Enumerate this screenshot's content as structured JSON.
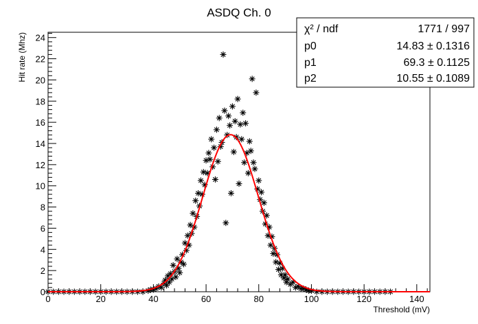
{
  "chart_data": {
    "type": "scatter",
    "title": "ASDQ Ch. 0",
    "xlabel": "Threshold (mV)",
    "ylabel": "Hit rate (Mhz)",
    "xlim": [
      0,
      145
    ],
    "ylim": [
      0,
      24.5
    ],
    "x_ticks": [
      0,
      20,
      40,
      60,
      80,
      100,
      120,
      140
    ],
    "y_ticks": [
      0,
      2,
      4,
      6,
      8,
      10,
      12,
      14,
      16,
      18,
      20,
      22,
      24
    ],
    "grid": false,
    "marker": "asterisk",
    "marker_color": "#000000",
    "fit_color": "#ff0000",
    "fit": {
      "function": "gaus",
      "p0": 14.83,
      "p1": 69.3,
      "p2": 10.55,
      "x_range": [
        0,
        145
      ]
    },
    "stats": {
      "rows": [
        {
          "label": "χ² / ndf",
          "value": "1771 / 997"
        },
        {
          "label": "p0",
          "value": "14.83 ± 0.1316"
        },
        {
          "label": "p1",
          "value": "69.3 ± 0.1125"
        },
        {
          "label": "p2",
          "value": "10.55 ± 0.1089"
        }
      ]
    },
    "series": [
      {
        "points": [
          [
            0,
            0
          ],
          [
            2,
            0
          ],
          [
            4,
            0
          ],
          [
            6,
            0
          ],
          [
            8,
            0
          ],
          [
            10,
            0
          ],
          [
            12,
            0
          ],
          [
            14,
            0
          ],
          [
            16,
            0
          ],
          [
            18,
            0
          ],
          [
            20,
            0
          ],
          [
            22,
            0
          ],
          [
            24,
            0
          ],
          [
            26,
            0
          ],
          [
            28,
            0
          ],
          [
            30,
            0
          ],
          [
            32,
            0
          ],
          [
            34,
            0
          ],
          [
            36,
            0
          ],
          [
            38,
            0.1
          ],
          [
            39,
            0.2
          ],
          [
            40,
            0.2
          ],
          [
            41,
            0.3
          ],
          [
            42,
            0.5
          ],
          [
            43,
            0.4
          ],
          [
            44,
            0.8
          ],
          [
            44.5,
            1.1
          ],
          [
            45,
            0.6
          ],
          [
            45.5,
            1.5
          ],
          [
            46,
            0.9
          ],
          [
            46.5,
            1.7
          ],
          [
            47,
            1.2
          ],
          [
            47.5,
            2.5
          ],
          [
            48,
            1.9
          ],
          [
            48.5,
            1.4
          ],
          [
            49,
            3.1
          ],
          [
            49.5,
            2.2
          ],
          [
            50,
            1.8
          ],
          [
            50.5,
            2.8
          ],
          [
            51,
            3.5
          ],
          [
            51.5,
            2.6
          ],
          [
            52,
            4.6
          ],
          [
            52.5,
            3.9
          ],
          [
            53,
            5.3
          ],
          [
            53.5,
            4.4
          ],
          [
            54,
            6.3
          ],
          [
            54.5,
            5.5
          ],
          [
            55,
            7.4
          ],
          [
            55.5,
            6.1
          ],
          [
            56,
            8.6
          ],
          [
            56.5,
            7.1
          ],
          [
            57,
            9.3
          ],
          [
            57.5,
            8.1
          ],
          [
            58,
            10.5
          ],
          [
            58.5,
            9.2
          ],
          [
            59,
            11.3
          ],
          [
            59.5,
            10.1
          ],
          [
            60,
            12.4
          ],
          [
            60.5,
            11.2
          ],
          [
            61,
            13.1
          ],
          [
            61.5,
            12.5
          ],
          [
            62,
            14.4
          ],
          [
            62.5,
            11.8
          ],
          [
            63,
            13.6
          ],
          [
            63.5,
            10.6
          ],
          [
            64,
            15.3
          ],
          [
            64.5,
            12.3
          ],
          [
            65,
            16.4
          ],
          [
            65.5,
            13.7
          ],
          [
            66,
            14.1
          ],
          [
            66.5,
            22.4
          ],
          [
            67,
            17.1
          ],
          [
            67.5,
            6.5
          ],
          [
            68,
            14.8
          ],
          [
            68.5,
            16.6
          ],
          [
            69,
            15.7
          ],
          [
            69.5,
            9.3
          ],
          [
            70,
            17.5
          ],
          [
            70.5,
            13.2
          ],
          [
            71,
            16.1
          ],
          [
            71.5,
            14.6
          ],
          [
            72,
            18.2
          ],
          [
            72.5,
            10.2
          ],
          [
            73,
            15.8
          ],
          [
            73.5,
            14.4
          ],
          [
            74,
            16.9
          ],
          [
            74.5,
            12.2
          ],
          [
            75,
            15.9
          ],
          [
            75.5,
            13.1
          ],
          [
            76,
            11.2
          ],
          [
            76.5,
            14.2
          ],
          [
            77,
            13.3
          ],
          [
            77.5,
            20.1
          ],
          [
            78,
            12.2
          ],
          [
            78.5,
            11.6
          ],
          [
            79,
            18.8
          ],
          [
            79.5,
            9.7
          ],
          [
            80,
            10.5
          ],
          [
            80.5,
            8.7
          ],
          [
            81,
            9.4
          ],
          [
            81.5,
            7.6
          ],
          [
            82,
            8.4
          ],
          [
            82.5,
            6.4
          ],
          [
            83,
            7.2
          ],
          [
            83.5,
            5.3
          ],
          [
            84,
            6.1
          ],
          [
            84.5,
            4.4
          ],
          [
            85,
            5.2
          ],
          [
            85.5,
            3.6
          ],
          [
            86,
            4.1
          ],
          [
            86.5,
            2.8
          ],
          [
            87,
            3.5
          ],
          [
            87.5,
            2.1
          ],
          [
            88,
            2.7
          ],
          [
            88.5,
            1.6
          ],
          [
            89,
            2.2
          ],
          [
            89.5,
            1.3
          ],
          [
            90,
            1.6
          ],
          [
            90.5,
            0.9
          ],
          [
            91,
            1.2
          ],
          [
            92,
            0.7
          ],
          [
            93,
            0.9
          ],
          [
            94,
            0.4
          ],
          [
            95,
            0.5
          ],
          [
            96,
            0.3
          ],
          [
            97,
            0.3
          ],
          [
            98,
            0.2
          ],
          [
            99,
            0.1
          ],
          [
            100,
            0.1
          ],
          [
            102,
            0
          ],
          [
            104,
            0
          ],
          [
            106,
            0
          ],
          [
            108,
            0
          ],
          [
            110,
            0
          ],
          [
            112,
            0
          ],
          [
            114,
            0
          ],
          [
            116,
            0
          ],
          [
            118,
            0
          ],
          [
            120,
            0
          ],
          [
            122,
            0
          ],
          [
            124,
            0
          ],
          [
            126,
            0
          ],
          [
            128,
            0
          ],
          [
            130,
            0
          ]
        ]
      }
    ]
  }
}
